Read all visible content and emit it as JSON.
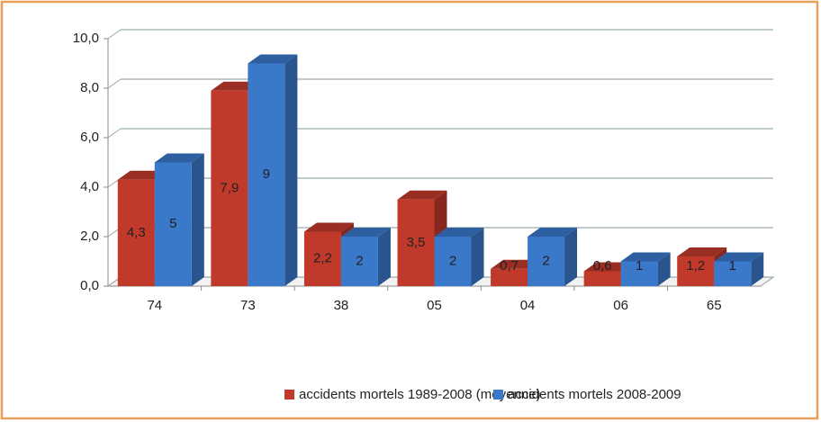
{
  "chart_data": {
    "type": "bar3d",
    "categories": [
      "74",
      "73",
      "38",
      "05",
      "04",
      "06",
      "65"
    ],
    "series": [
      {
        "name": "accidents mortels 1989-2008 (moyenne)",
        "color": "#c0392b",
        "values": [
          4.3,
          7.9,
          2.2,
          3.5,
          0.7,
          0.6,
          1.2
        ],
        "value_labels": [
          "4,3",
          "7,9",
          "2,2",
          "3,5",
          "0,7",
          "0,6",
          "1,2"
        ]
      },
      {
        "name": "accidents mortels 2008-2009",
        "color": "#3a78c9",
        "values": [
          5,
          9,
          2,
          2,
          2,
          1,
          1
        ]
      }
    ],
    "ylim": [
      0,
      10
    ],
    "yticks": [
      {
        "value": 0,
        "label": "0,0"
      },
      {
        "value": 2,
        "label": "2,0"
      },
      {
        "value": 4,
        "label": "4,0"
      },
      {
        "value": 6,
        "label": "6,0"
      },
      {
        "value": 8,
        "label": "8,0"
      },
      {
        "value": 10,
        "label": "10,0"
      }
    ],
    "grid": true,
    "legend": "bottom"
  }
}
